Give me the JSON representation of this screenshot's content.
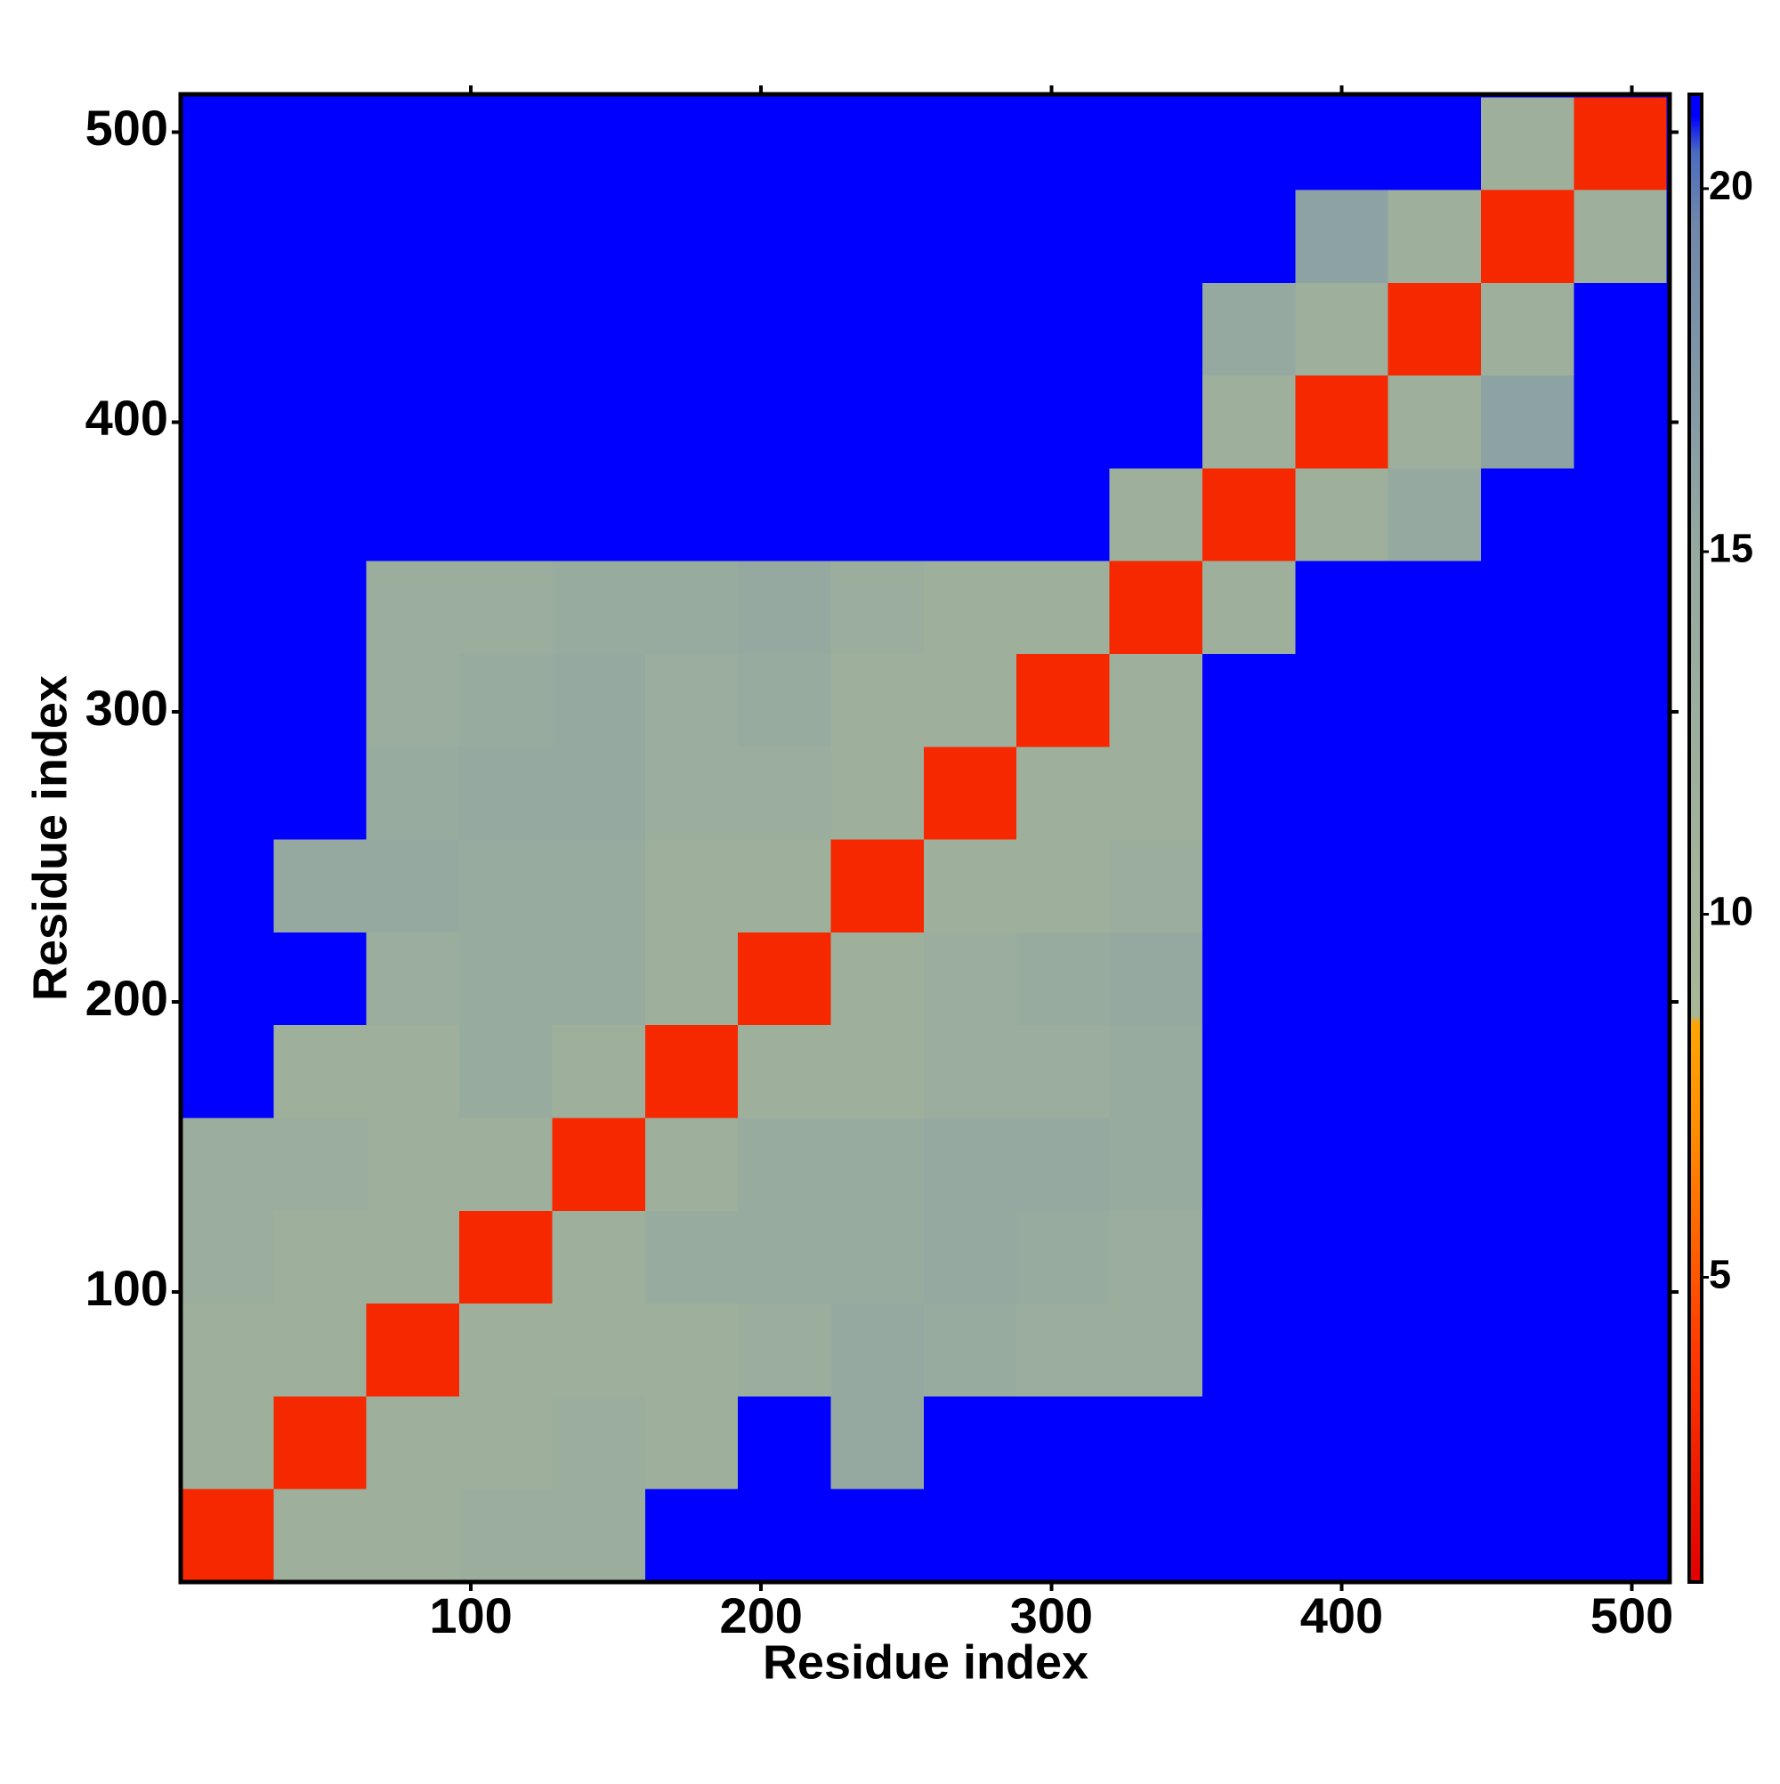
{
  "chart_data": {
    "type": "heatmap",
    "x_label": "Residue index",
    "y_label": "Residue index",
    "xbins": [
      0,
      32,
      64,
      96,
      128,
      160,
      192,
      224,
      256,
      288,
      320,
      352,
      384,
      416,
      448,
      480,
      512
    ],
    "ybins": [
      0,
      32,
      64,
      96,
      128,
      160,
      192,
      224,
      256,
      288,
      320,
      352,
      384,
      416,
      448,
      480,
      512
    ],
    "z": [
      [
        3,
        12,
        12,
        13,
        13,
        21,
        21,
        21,
        21,
        21,
        21,
        21,
        21,
        21,
        21,
        21
      ],
      [
        12,
        3,
        12,
        12,
        13,
        12,
        21,
        15,
        21,
        21,
        21,
        21,
        21,
        21,
        21,
        21
      ],
      [
        12,
        12,
        3,
        12,
        12,
        12,
        13,
        15,
        14,
        13,
        13,
        21,
        21,
        21,
        21,
        21
      ],
      [
        13,
        12,
        12,
        3,
        12,
        14,
        14,
        14,
        15,
        14,
        13,
        21,
        21,
        21,
        21,
        21
      ],
      [
        13,
        13,
        12,
        12,
        3,
        12,
        14,
        14,
        15,
        15,
        14,
        21,
        21,
        21,
        21,
        21
      ],
      [
        21,
        12,
        12,
        14,
        12,
        3,
        12,
        12,
        13,
        13,
        14,
        21,
        21,
        21,
        21,
        21
      ],
      [
        21,
        21,
        13,
        14,
        14,
        12,
        3,
        12,
        13,
        14,
        15,
        21,
        21,
        21,
        21,
        21
      ],
      [
        21,
        15,
        15,
        14,
        14,
        12,
        12,
        3,
        12,
        12,
        13,
        21,
        21,
        21,
        21,
        21
      ],
      [
        21,
        21,
        14,
        15,
        15,
        13,
        13,
        12,
        3,
        12,
        12,
        21,
        21,
        21,
        21,
        21
      ],
      [
        21,
        21,
        13,
        14,
        15,
        13,
        14,
        12,
        12,
        3,
        12,
        21,
        21,
        21,
        21,
        21
      ],
      [
        21,
        21,
        13,
        13,
        14,
        14,
        15,
        13,
        12,
        12,
        3,
        12,
        21,
        21,
        21,
        21
      ],
      [
        21,
        21,
        21,
        21,
        21,
        21,
        21,
        21,
        21,
        21,
        12,
        3,
        12,
        15,
        21,
        21
      ],
      [
        21,
        21,
        21,
        21,
        21,
        21,
        21,
        21,
        21,
        21,
        21,
        12,
        3,
        12,
        16,
        21
      ],
      [
        21,
        21,
        21,
        21,
        21,
        21,
        21,
        21,
        21,
        21,
        21,
        15,
        12,
        3,
        12,
        21
      ],
      [
        21,
        21,
        21,
        21,
        21,
        21,
        21,
        21,
        21,
        21,
        21,
        21,
        16,
        12,
        3,
        12
      ],
      [
        21,
        21,
        21,
        21,
        21,
        21,
        21,
        21,
        21,
        21,
        21,
        21,
        21,
        21,
        12,
        3
      ]
    ],
    "xlim": [
      0,
      513
    ],
    "ylim": [
      0,
      513
    ],
    "xticks": [
      100,
      200,
      300,
      400,
      500
    ],
    "yticks": [
      100,
      200,
      300,
      400,
      500
    ],
    "clim": [
      0.8,
      21.3
    ],
    "cticks": [
      5,
      10,
      15,
      20
    ],
    "colorscale": [
      [
        0.8,
        "#e00000"
      ],
      [
        4,
        "#ff3a00"
      ],
      [
        7,
        "#ff8c00"
      ],
      [
        8.5,
        "#ffa500"
      ],
      [
        8.6,
        "#a8b897"
      ],
      [
        15,
        "#95a9a0"
      ],
      [
        19.5,
        "#6f88aa"
      ],
      [
        20.5,
        "#4a6cc0"
      ],
      [
        21,
        "#0000ff"
      ]
    ]
  }
}
